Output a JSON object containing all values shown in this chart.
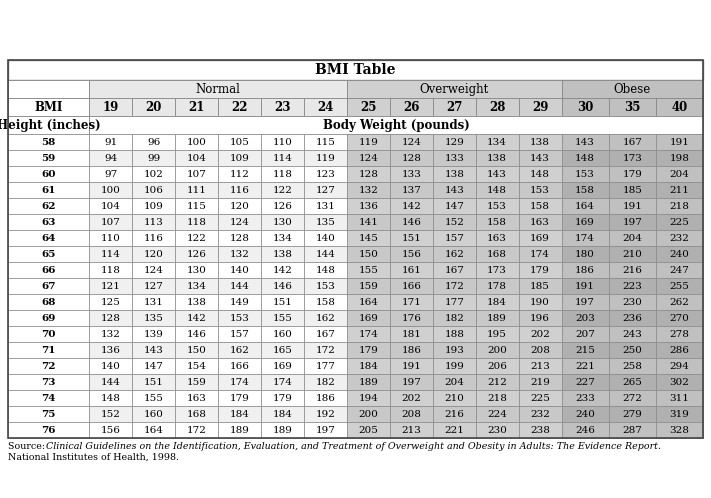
{
  "title": "BMI Table",
  "source_line1": "Source: ",
  "source_italic": "Clinical Guidelines on the Identification, Evaluation, and Treatment of Overweight and Obesity in Adults: The Evidence Report.",
  "source_line2": "National Institutes of Health, 1998.",
  "bmi_row": [
    "BMI",
    "19",
    "20",
    "21",
    "22",
    "23",
    "24",
    "25",
    "26",
    "27",
    "28",
    "29",
    "30",
    "35",
    "40"
  ],
  "heights": [
    58,
    59,
    60,
    61,
    62,
    63,
    64,
    65,
    66,
    67,
    68,
    69,
    70,
    71,
    72,
    73,
    74,
    75,
    76
  ],
  "data": [
    [
      91,
      96,
      100,
      105,
      110,
      115,
      119,
      124,
      129,
      134,
      138,
      143,
      167,
      191
    ],
    [
      94,
      99,
      104,
      109,
      114,
      119,
      124,
      128,
      133,
      138,
      143,
      148,
      173,
      198
    ],
    [
      97,
      102,
      107,
      112,
      118,
      123,
      128,
      133,
      138,
      143,
      148,
      153,
      179,
      204
    ],
    [
      100,
      106,
      111,
      116,
      122,
      127,
      132,
      137,
      143,
      148,
      153,
      158,
      185,
      211
    ],
    [
      104,
      109,
      115,
      120,
      126,
      131,
      136,
      142,
      147,
      153,
      158,
      164,
      191,
      218
    ],
    [
      107,
      113,
      118,
      124,
      130,
      135,
      141,
      146,
      152,
      158,
      163,
      169,
      197,
      225
    ],
    [
      110,
      116,
      122,
      128,
      134,
      140,
      145,
      151,
      157,
      163,
      169,
      174,
      204,
      232
    ],
    [
      114,
      120,
      126,
      132,
      138,
      144,
      150,
      156,
      162,
      168,
      174,
      180,
      210,
      240
    ],
    [
      118,
      124,
      130,
      140,
      142,
      148,
      155,
      161,
      167,
      173,
      179,
      186,
      216,
      247
    ],
    [
      121,
      127,
      134,
      144,
      146,
      153,
      159,
      166,
      172,
      178,
      185,
      191,
      223,
      255
    ],
    [
      125,
      131,
      138,
      149,
      151,
      158,
      164,
      171,
      177,
      184,
      190,
      197,
      230,
      262
    ],
    [
      128,
      135,
      142,
      153,
      155,
      162,
      169,
      176,
      182,
      189,
      196,
      203,
      236,
      270
    ],
    [
      132,
      139,
      146,
      157,
      160,
      167,
      174,
      181,
      188,
      195,
      202,
      207,
      243,
      278
    ],
    [
      136,
      143,
      150,
      162,
      165,
      172,
      179,
      186,
      193,
      200,
      208,
      215,
      250,
      286
    ],
    [
      140,
      147,
      154,
      166,
      169,
      177,
      184,
      191,
      199,
      206,
      213,
      221,
      258,
      294
    ],
    [
      144,
      151,
      159,
      174,
      174,
      182,
      189,
      197,
      204,
      212,
      219,
      227,
      265,
      302
    ],
    [
      148,
      155,
      163,
      179,
      179,
      186,
      194,
      202,
      210,
      218,
      225,
      233,
      272,
      311
    ],
    [
      152,
      160,
      168,
      184,
      184,
      192,
      200,
      208,
      216,
      224,
      232,
      240,
      279,
      319
    ],
    [
      156,
      164,
      172,
      189,
      189,
      197,
      205,
      213,
      221,
      230,
      238,
      246,
      287,
      328
    ]
  ],
  "bg_white": "#ffffff",
  "bg_light_gray": "#e8e8e8",
  "bg_overweight": "#d0d0d0",
  "bg_obese": "#c0c0c0",
  "bg_row_alt_normal": "#f0f0f0",
  "bg_row_alt_ow": "#c8c8c8",
  "bg_row_alt_ob": "#b0b0b0",
  "border_color": "#888888",
  "text_color": "#000000",
  "font_size_title": 10,
  "font_size_header": 8.5,
  "font_size_bmi": 8.5,
  "font_size_data": 7.5,
  "font_size_source": 6.8
}
